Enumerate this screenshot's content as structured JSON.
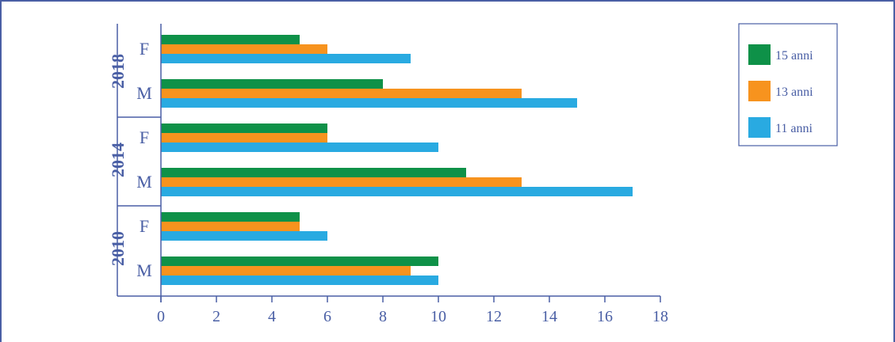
{
  "chart_data": {
    "type": "bar",
    "orientation": "horizontal",
    "xlim": [
      0,
      18
    ],
    "x_ticks": [
      "0",
      "2",
      "4",
      "6",
      "8",
      "10",
      "12",
      "14",
      "16",
      "18"
    ],
    "groups": [
      {
        "year": "2018",
        "categories": [
          {
            "label": "F",
            "values": {
              "15 anni": 5,
              "13 anni": 6,
              "11 anni": 9
            }
          },
          {
            "label": "M",
            "values": {
              "15 anni": 8,
              "13 anni": 13,
              "11 anni": 15
            }
          }
        ]
      },
      {
        "year": "2014",
        "categories": [
          {
            "label": "F",
            "values": {
              "15 anni": 6,
              "13 anni": 6,
              "11 anni": 10
            }
          },
          {
            "label": "M",
            "values": {
              "15 anni": 11,
              "13 anni": 13,
              "11 anni": 17
            }
          }
        ]
      },
      {
        "year": "2010",
        "categories": [
          {
            "label": "F",
            "values": {
              "15 anni": 5,
              "13 anni": 5,
              "11 anni": 6
            }
          },
          {
            "label": "M",
            "values": {
              "15 anni": 10,
              "13 anni": 9,
              "11 anni": 10
            }
          }
        ]
      }
    ],
    "series": [
      {
        "name": "15 anni",
        "color": "#0e9148"
      },
      {
        "name": "13 anni",
        "color": "#f7931e"
      },
      {
        "name": "11 anni",
        "color": "#29aae1"
      }
    ],
    "legend_position": "top-right",
    "grid": false
  },
  "colors": {
    "axis": "#4a5fa5",
    "frame": "#4a5fa5"
  }
}
